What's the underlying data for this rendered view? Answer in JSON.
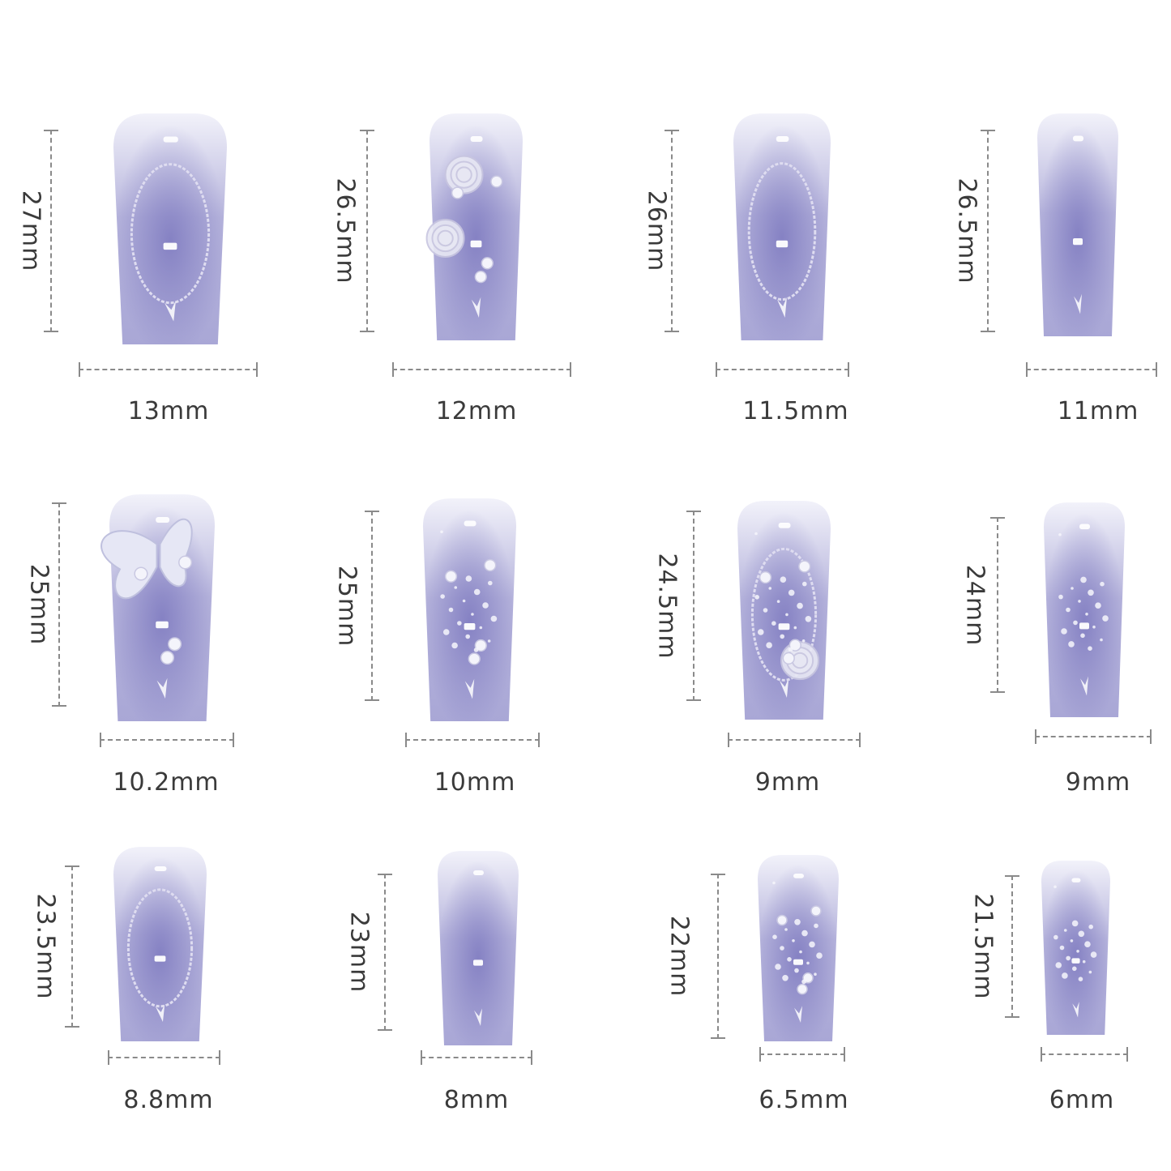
{
  "colors": {
    "nail_top": "#f2f2fa",
    "nail_mid": "#b6b4dc",
    "nail_core": "#7d79bf",
    "dim_line": "#8a8a8a",
    "label_text": "#3a3a3a"
  },
  "nails": [
    {
      "height_label": "27mm",
      "width_label": "13mm",
      "decor": "oval-frame"
    },
    {
      "height_label": "26.5mm",
      "width_label": "12mm",
      "decor": "roses-pearls"
    },
    {
      "height_label": "26mm",
      "width_label": "11.5mm",
      "decor": "oval-frame"
    },
    {
      "height_label": "26.5mm",
      "width_label": "11mm",
      "decor": "plain"
    },
    {
      "height_label": "25mm",
      "width_label": "10.2mm",
      "decor": "butterfly"
    },
    {
      "height_label": "25mm",
      "width_label": "10mm",
      "decor": "pearls-glitter"
    },
    {
      "height_label": "24.5mm",
      "width_label": "9mm",
      "decor": "rose-frame"
    },
    {
      "height_label": "24mm",
      "width_label": "9mm",
      "decor": "glitter"
    },
    {
      "height_label": "23.5mm",
      "width_label": "8.8mm",
      "decor": "oval-frame"
    },
    {
      "height_label": "23mm",
      "width_label": "8mm",
      "decor": "plain"
    },
    {
      "height_label": "22mm",
      "width_label": "6.5mm",
      "decor": "pearls-glitter"
    },
    {
      "height_label": "21.5mm",
      "width_label": "6mm",
      "decor": "glitter"
    }
  ]
}
